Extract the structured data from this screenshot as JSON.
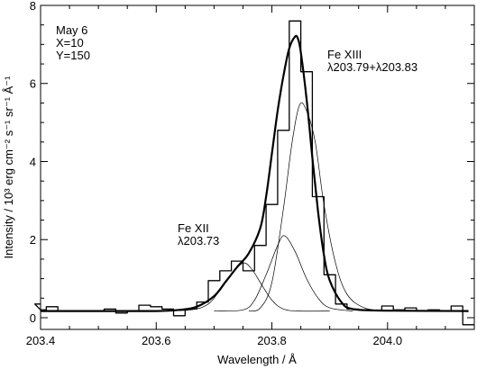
{
  "chart_data": {
    "type": "line",
    "xlabel": "Wavelength / Å",
    "ylabel": "Intensity / 10³ erg cm⁻² s⁻¹ sr⁻¹ Å⁻¹",
    "xlim": [
      203.4,
      204.15
    ],
    "ylim": [
      -0.3,
      8.0
    ],
    "x_ticks": [
      "203.4",
      "203.6",
      "203.8",
      "204.0"
    ],
    "y_ticks": [
      "0",
      "2",
      "4",
      "6",
      "8"
    ],
    "annotations": {
      "obs": [
        "May 6",
        "X=10",
        "Y=150"
      ],
      "fe12": [
        "Fe XII",
        "λ203.73"
      ],
      "fe13": [
        "Fe XIII",
        "λ203.79+λ203.83"
      ]
    },
    "series": [
      {
        "style": "histogram",
        "x": [
          203.38,
          203.4,
          203.42,
          203.44,
          203.46,
          203.48,
          203.5,
          203.52,
          203.54,
          203.56,
          203.58,
          203.6,
          203.62,
          203.64,
          203.66,
          203.68,
          203.7,
          203.72,
          203.74,
          203.76,
          203.78,
          203.8,
          203.82,
          203.84,
          203.86,
          203.88,
          203.9,
          203.92,
          203.94,
          203.96,
          203.98,
          204.0,
          204.02,
          204.04,
          204.06,
          204.08,
          204.1,
          204.12,
          204.14
        ],
        "y": [
          0.35,
          0.2,
          0.28,
          0.18,
          0.18,
          0.18,
          0.18,
          0.22,
          0.12,
          0.18,
          0.32,
          0.28,
          0.22,
          0.05,
          0.22,
          0.4,
          0.95,
          1.2,
          1.45,
          1.2,
          1.85,
          2.9,
          4.8,
          7.6,
          6.3,
          3.1,
          1.1,
          0.35,
          0.22,
          0.2,
          0.18,
          0.3,
          0.2,
          0.25,
          0.18,
          0.2,
          0.18,
          0.3,
          -0.18
        ]
      },
      {
        "style": "fit-total",
        "x": [
          203.4,
          203.5,
          203.6,
          203.64,
          203.67,
          203.7,
          203.72,
          203.74,
          203.76,
          203.78,
          203.79,
          203.8,
          203.81,
          203.82,
          203.83,
          203.84,
          203.845,
          203.85,
          203.86,
          203.87,
          203.88,
          203.89,
          203.9,
          203.92,
          203.94,
          204.0,
          204.14
        ],
        "y": [
          0.17,
          0.17,
          0.17,
          0.2,
          0.28,
          0.55,
          0.92,
          1.3,
          1.65,
          2.3,
          3.1,
          4.2,
          5.3,
          6.2,
          6.9,
          7.2,
          7.15,
          6.8,
          5.6,
          4.1,
          2.7,
          1.6,
          0.95,
          0.4,
          0.22,
          0.18,
          0.17
        ]
      },
      {
        "style": "component",
        "name": "Fe XII",
        "x": [
          203.6,
          203.66,
          203.69,
          203.71,
          203.73,
          203.75,
          203.765,
          203.78,
          203.8,
          203.82,
          203.85,
          203.9
        ],
        "y": [
          0.17,
          0.2,
          0.35,
          0.7,
          1.1,
          1.4,
          1.25,
          0.9,
          0.45,
          0.22,
          0.17,
          0.17
        ]
      },
      {
        "style": "component",
        "name": "λ203.79",
        "x": [
          203.7,
          203.75,
          203.77,
          203.79,
          203.81,
          203.822,
          203.84,
          203.86,
          203.88,
          203.9,
          203.94
        ],
        "y": [
          0.17,
          0.2,
          0.45,
          1.1,
          1.85,
          2.1,
          1.7,
          1.0,
          0.5,
          0.25,
          0.17
        ]
      },
      {
        "style": "component",
        "name": "λ203.83",
        "x": [
          203.76,
          203.78,
          203.8,
          203.82,
          203.835,
          203.848,
          203.86,
          203.875,
          203.89,
          203.91,
          203.93,
          203.96,
          204.0
        ],
        "y": [
          0.17,
          0.25,
          0.9,
          2.8,
          4.5,
          5.45,
          5.3,
          4.5,
          2.9,
          1.4,
          0.6,
          0.25,
          0.17
        ]
      }
    ]
  }
}
